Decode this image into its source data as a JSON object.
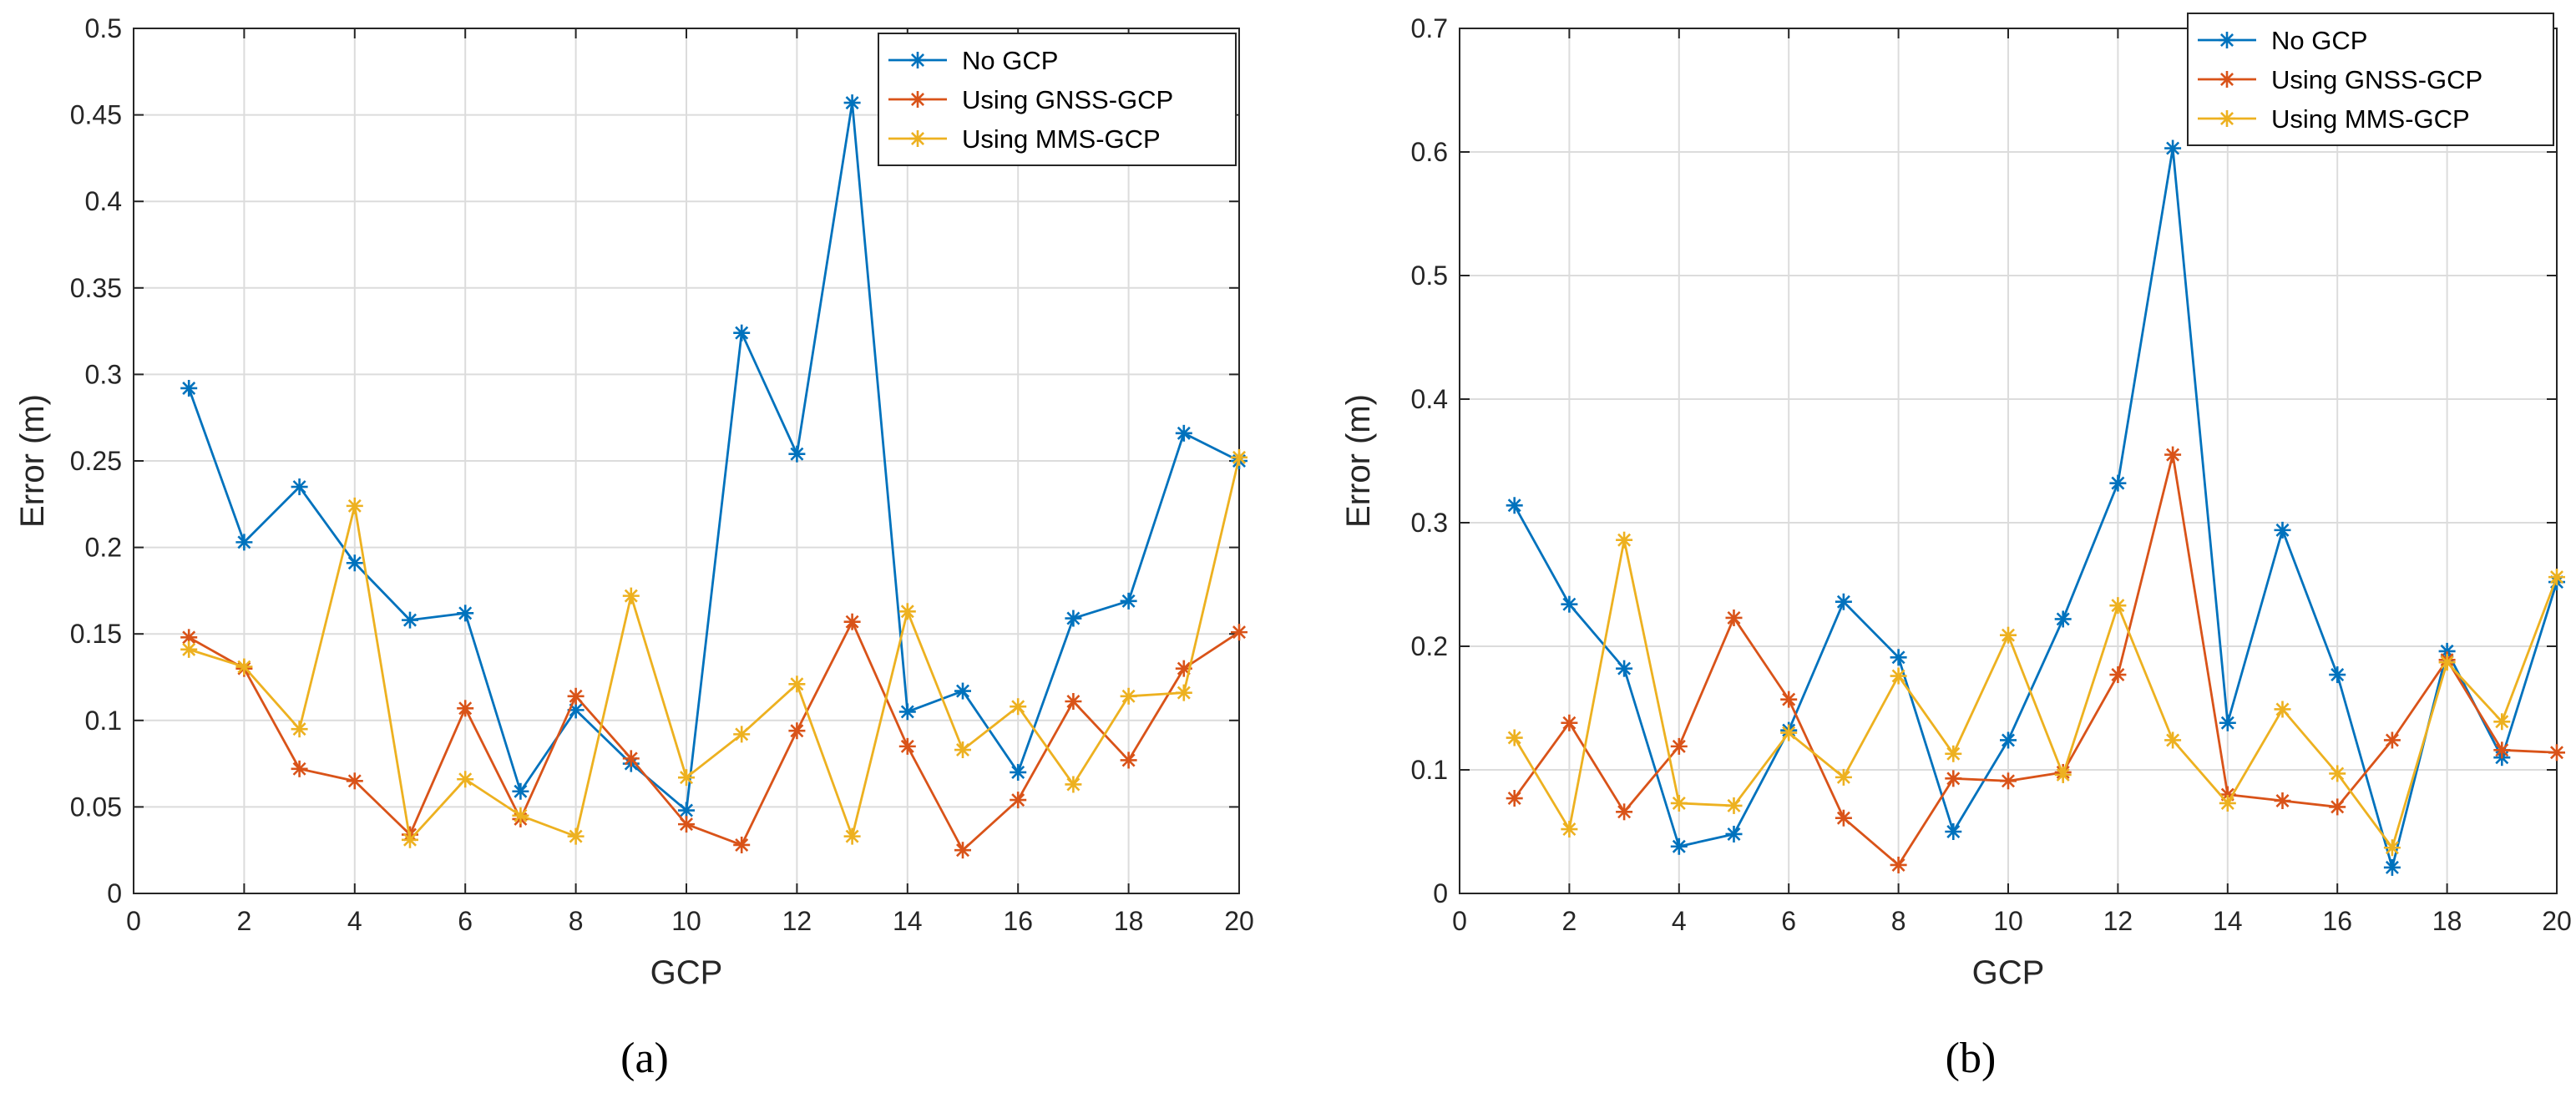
{
  "colors": {
    "no_gcp": "#0072BD",
    "gnss_gcp": "#D95319",
    "mms_gcp": "#EDB120",
    "grid": "#DCDCDC",
    "axis": "#262626"
  },
  "chart_data": [
    {
      "type": "line",
      "panel_label": "(a)",
      "xlabel": "GCP",
      "ylabel": "Error (m)",
      "xlim": [
        0,
        20
      ],
      "ylim": [
        0,
        0.5
      ],
      "xticks": [
        0,
        2,
        4,
        6,
        8,
        10,
        12,
        14,
        16,
        18,
        20
      ],
      "yticks": [
        0,
        0.05,
        0.1,
        0.15,
        0.2,
        0.25,
        0.3,
        0.35,
        0.4,
        0.45,
        0.5
      ],
      "ytick_labels": [
        "0",
        "0.05",
        "0.1",
        "0.15",
        "0.2",
        "0.25",
        "0.3",
        "0.35",
        "0.4",
        "0.45",
        "0.5"
      ],
      "grid": true,
      "legend_position": "top-right",
      "marker": "asterisk",
      "x": [
        1,
        2,
        3,
        4,
        5,
        6,
        7,
        8,
        9,
        10,
        11,
        12,
        13,
        14,
        15,
        16,
        17,
        18,
        19,
        20
      ],
      "series": [
        {
          "name": "No GCP",
          "color_key": "no_gcp",
          "values": [
            0.292,
            0.203,
            0.235,
            0.191,
            0.158,
            0.162,
            0.059,
            0.106,
            0.075,
            0.048,
            0.324,
            0.254,
            0.457,
            0.105,
            0.117,
            0.07,
            0.159,
            0.169,
            0.266,
            0.25
          ]
        },
        {
          "name": "Using GNSS-GCP",
          "color_key": "gnss_gcp",
          "values": [
            0.148,
            0.13,
            0.072,
            0.065,
            0.034,
            0.107,
            0.043,
            0.114,
            0.078,
            0.04,
            0.028,
            0.094,
            0.157,
            0.085,
            0.025,
            0.054,
            0.111,
            0.077,
            0.13,
            0.151
          ]
        },
        {
          "name": "Using MMS-GCP",
          "color_key": "mms_gcp",
          "values": [
            0.141,
            0.131,
            0.095,
            0.224,
            0.031,
            0.066,
            0.045,
            0.033,
            0.172,
            0.067,
            0.092,
            0.121,
            0.033,
            0.163,
            0.083,
            0.108,
            0.063,
            0.114,
            0.116,
            0.252
          ]
        }
      ]
    },
    {
      "type": "line",
      "panel_label": "(b)",
      "xlabel": "GCP",
      "ylabel": "Error (m)",
      "xlim": [
        0,
        20
      ],
      "ylim": [
        0,
        0.7
      ],
      "xticks": [
        0,
        2,
        4,
        6,
        8,
        10,
        12,
        14,
        16,
        18,
        20
      ],
      "yticks": [
        0,
        0.1,
        0.2,
        0.3,
        0.4,
        0.5,
        0.6,
        0.7
      ],
      "ytick_labels": [
        "0",
        "0.1",
        "0.2",
        "0.3",
        "0.4",
        "0.5",
        "0.6",
        "0.7"
      ],
      "grid": true,
      "legend_position": "top-right",
      "marker": "asterisk",
      "x": [
        1,
        2,
        3,
        4,
        5,
        6,
        7,
        8,
        9,
        10,
        11,
        12,
        13,
        14,
        15,
        16,
        17,
        18,
        19,
        20
      ],
      "series": [
        {
          "name": "No GCP",
          "color_key": "no_gcp",
          "values": [
            0.314,
            0.234,
            0.182,
            0.038,
            0.048,
            0.132,
            0.236,
            0.191,
            0.05,
            0.124,
            0.222,
            0.332,
            0.603,
            0.138,
            0.294,
            0.177,
            0.021,
            0.196,
            0.11,
            0.252
          ]
        },
        {
          "name": "Using GNSS-GCP",
          "color_key": "gnss_gcp",
          "values": [
            0.077,
            0.138,
            0.066,
            0.119,
            0.223,
            0.157,
            0.061,
            0.023,
            0.093,
            0.091,
            0.098,
            0.177,
            0.355,
            0.08,
            0.075,
            0.07,
            0.124,
            0.189,
            0.116,
            0.114
          ]
        },
        {
          "name": "Using MMS-GCP",
          "color_key": "mms_gcp",
          "values": [
            0.126,
            0.052,
            0.286,
            0.073,
            0.071,
            0.13,
            0.094,
            0.176,
            0.113,
            0.209,
            0.096,
            0.233,
            0.124,
            0.073,
            0.149,
            0.097,
            0.037,
            0.187,
            0.139,
            0.256
          ]
        }
      ]
    }
  ]
}
